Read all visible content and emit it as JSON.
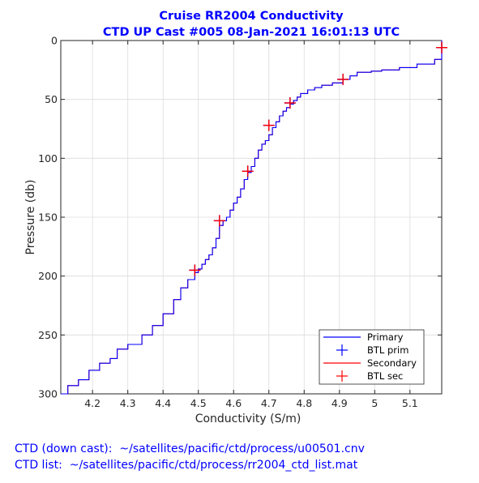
{
  "colors": {
    "primary": "#0000ff",
    "secondary": "#ff0000",
    "btl_prim": "#0000ff",
    "btl_sec": "#ff0000",
    "title": "#0000ff",
    "grid": "#dcdcdc"
  },
  "footer": {
    "line1": "CTD (down cast):  ~/satellites/pacific/ctd/process/u00501.cnv",
    "line2": "CTD list:  ~/satellites/pacific/ctd/process/rr2004_ctd_list.mat"
  },
  "chart_data": {
    "type": "line",
    "title": [
      "Cruise RR2004 Conductivity",
      "CTD UP Cast #005 08-Jan-2021 16:01:13 UTC"
    ],
    "xlabel": "Conductivity (S/m)",
    "ylabel": "Pressure (db)",
    "xlim": [
      4.11,
      5.19
    ],
    "ylim": [
      0,
      300
    ],
    "y_reversed": true,
    "grid": true,
    "legend_position": "bottom-right",
    "xticks": [
      4.2,
      4.3,
      4.4,
      4.5,
      4.6,
      4.7,
      4.8,
      4.9,
      5.0,
      5.1
    ],
    "xtick_labels": [
      "4.2",
      "4.3",
      "4.4",
      "4.5",
      "4.6",
      "4.7",
      "4.8",
      "4.9",
      "5",
      "5.1"
    ],
    "yticks": [
      0,
      50,
      100,
      150,
      200,
      250,
      300
    ],
    "ytick_labels": [
      "0",
      "50",
      "100",
      "150",
      "200",
      "250",
      "300"
    ],
    "legend": [
      "Primary",
      "BTL prim",
      "Secondary",
      "BTL sec"
    ],
    "series": [
      {
        "name": "Primary",
        "style": "line",
        "x": [
          5.19,
          5.19,
          5.17,
          5.12,
          5.07,
          5.02,
          4.99,
          4.95,
          4.93,
          4.91,
          4.88,
          4.85,
          4.83,
          4.81,
          4.79,
          4.78,
          4.77,
          4.76,
          4.75,
          4.74,
          4.73,
          4.72,
          4.71,
          4.7,
          4.69,
          4.68,
          4.67,
          4.66,
          4.65,
          4.64,
          4.63,
          4.62,
          4.61,
          4.6,
          4.59,
          4.58,
          4.57,
          4.56,
          4.55,
          4.54,
          4.53,
          4.52,
          4.51,
          4.5,
          4.49,
          4.47,
          4.45,
          4.43,
          4.4,
          4.37,
          4.34,
          4.3,
          4.27,
          4.25,
          4.22,
          4.19,
          4.16,
          4.13,
          4.11
        ],
        "y": [
          0,
          6,
          16,
          20,
          23,
          25,
          26,
          27,
          30,
          33,
          36,
          38,
          40,
          42,
          45,
          48,
          51,
          54,
          57,
          60,
          64,
          69,
          74,
          80,
          85,
          88,
          93,
          100,
          107,
          112,
          118,
          126,
          133,
          138,
          144,
          150,
          153,
          157,
          168,
          176,
          182,
          186,
          190,
          194,
          197,
          203,
          210,
          220,
          232,
          242,
          250,
          258,
          262,
          270,
          274,
          280,
          288,
          293,
          300
        ]
      },
      {
        "name": "BTL prim",
        "style": "marker",
        "x": [
          5.19,
          4.91,
          4.76,
          4.7,
          4.64,
          4.56,
          4.49
        ],
        "y": [
          6,
          33,
          53,
          72,
          111,
          153,
          195
        ]
      },
      {
        "name": "Secondary",
        "style": "line",
        "x": [
          5.19,
          5.19,
          5.17,
          5.12,
          5.07,
          5.02,
          4.99,
          4.95,
          4.93,
          4.91,
          4.88,
          4.85,
          4.83,
          4.81,
          4.79,
          4.78,
          4.77,
          4.76,
          4.75,
          4.74,
          4.73,
          4.72,
          4.71,
          4.7,
          4.69,
          4.68,
          4.67,
          4.66,
          4.65,
          4.64,
          4.63,
          4.62,
          4.61,
          4.6,
          4.59,
          4.58,
          4.57,
          4.56,
          4.55,
          4.54,
          4.53,
          4.52,
          4.51,
          4.5,
          4.49,
          4.47,
          4.45,
          4.43,
          4.4,
          4.37,
          4.34,
          4.3,
          4.27,
          4.25,
          4.22,
          4.19,
          4.16,
          4.13,
          4.11
        ],
        "y": [
          0,
          6,
          16,
          20,
          23,
          25,
          26,
          27,
          30,
          33,
          36,
          38,
          40,
          42,
          45,
          48,
          51,
          54,
          57,
          60,
          64,
          69,
          74,
          80,
          85,
          88,
          93,
          100,
          107,
          112,
          118,
          126,
          133,
          138,
          144,
          150,
          153,
          157,
          168,
          176,
          182,
          186,
          190,
          194,
          197,
          203,
          210,
          220,
          232,
          242,
          250,
          258,
          262,
          270,
          274,
          280,
          288,
          293,
          300
        ]
      },
      {
        "name": "BTL sec",
        "style": "marker",
        "x": [
          5.19,
          4.91,
          4.76,
          4.7,
          4.64,
          4.56,
          4.49
        ],
        "y": [
          6,
          33,
          53,
          72,
          111,
          153,
          195
        ]
      }
    ]
  }
}
